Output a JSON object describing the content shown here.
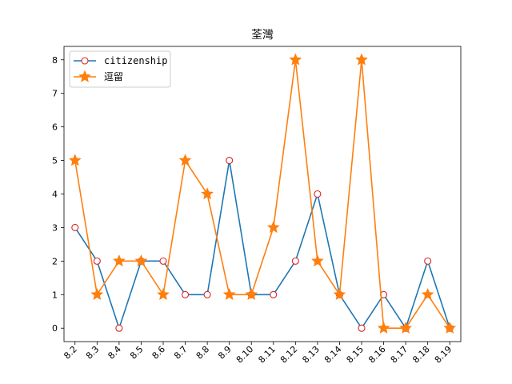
{
  "chart_data": {
    "type": "line",
    "title": "荃灣",
    "xlabel": "",
    "ylabel": "",
    "categories": [
      "8.2",
      "8.3",
      "8.4",
      "8.5",
      "8.6",
      "8.7",
      "8.8",
      "8.9",
      "8.10",
      "8.11",
      "8.12",
      "8.13",
      "8.14",
      "8.15",
      "8.16",
      "8.17",
      "8.18",
      "8.19"
    ],
    "ylim": [
      -0.4,
      8.4
    ],
    "yticks": [
      0,
      1,
      2,
      3,
      4,
      5,
      6,
      7,
      8
    ],
    "grid": false,
    "legend_position": "upper-left",
    "series": [
      {
        "name": "citizenship",
        "color": "#1f77b4",
        "marker": "circle-open",
        "marker_edge_color": "#d62728",
        "values": [
          3,
          2,
          0,
          2,
          2,
          1,
          1,
          5,
          1,
          1,
          2,
          4,
          1,
          0,
          1,
          0,
          2,
          0
        ]
      },
      {
        "name": "逗留",
        "color": "#ff7f0e",
        "marker": "star",
        "values": [
          5,
          1,
          2,
          2,
          1,
          5,
          4,
          1,
          1,
          3,
          8,
          2,
          1,
          8,
          0,
          0,
          1,
          0
        ]
      }
    ]
  }
}
